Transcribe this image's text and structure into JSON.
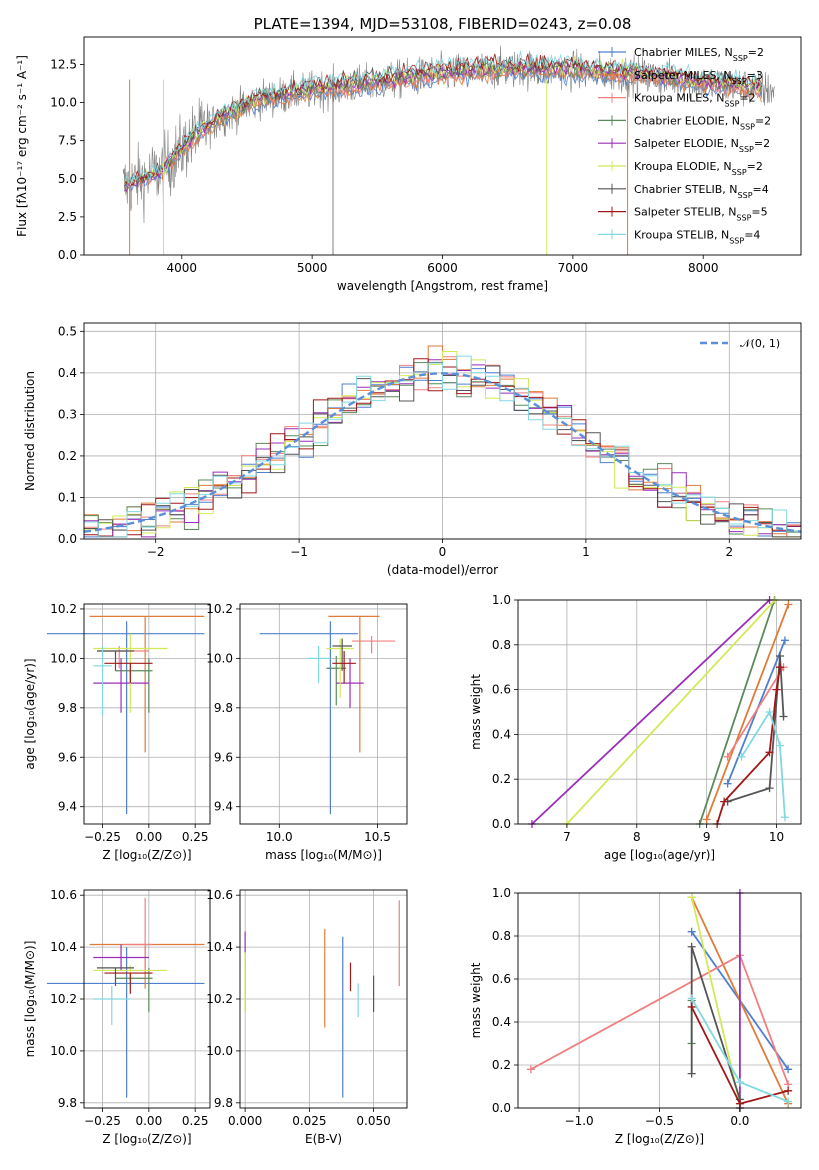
{
  "colors": {
    "miles_chabrier": "#4f7fcf",
    "miles_salpeter": "#e07b39",
    "miles_kroupa": "#f08080",
    "elodie_chabrier": "#5a8a5a",
    "elodie_salpeter": "#9a2fb8",
    "elodie_kroupa": "#d4e85a",
    "stelib_chabrier": "#555555",
    "stelib_salpeter": "#a01818",
    "stelib_kroupa": "#80d8e0",
    "normal": "#5b8fd8",
    "data": "#808080"
  },
  "chart_data": [
    {
      "id": "spectrum",
      "type": "line",
      "title": "PLATE=1394, MJD=53108, FIBERID=0243, z=0.08",
      "xlabel": "wavelength [Angstrom, rest frame]",
      "ylabel": "Flux [fλ10⁻¹⁷ erg cm⁻² s⁻¹ A⁻¹]",
      "xlim": [
        3250,
        8750
      ],
      "ylim": [
        0,
        14.3
      ],
      "xticks": [
        "4000",
        "5000",
        "6000",
        "7000",
        "8000"
      ],
      "yticks": [
        "0.0",
        "2.5",
        "5.0",
        "7.5",
        "10.0",
        "12.5"
      ],
      "grid": false,
      "legend_position": "top-right",
      "legend": [
        {
          "label": "Chabrier MILES, N",
          "sub": "SSP",
          "val": "=2"
        },
        {
          "label": "Salpeter MILES, N",
          "sub": "SSP",
          "val": "=3"
        },
        {
          "label": "Kroupa MILES, N",
          "sub": "SSP",
          "val": "=2"
        },
        {
          "label": "Chabrier ELODIE, N",
          "sub": "SSP",
          "val": "=2"
        },
        {
          "label": "Salpeter ELODIE, N",
          "sub": "SSP",
          "val": "=2"
        },
        {
          "label": "Kroupa ELODIE, N",
          "sub": "SSP",
          "val": "=2"
        },
        {
          "label": "Chabrier STELIB, N",
          "sub": "SSP",
          "val": "=4"
        },
        {
          "label": "Salpeter STELIB, N",
          "sub": "SSP",
          "val": "=5"
        },
        {
          "label": "Kroupa STELIB, N",
          "sub": "SSP",
          "val": "=4"
        }
      ],
      "continuum": {
        "x": [
          3550,
          3700,
          3850,
          3950,
          4100,
          4300,
          4600,
          5000,
          5500,
          6000,
          6500,
          7000,
          7500,
          8000,
          8500
        ],
        "y": [
          4.5,
          5.0,
          5.5,
          6.5,
          7.8,
          9.0,
          10.2,
          10.8,
          11.3,
          11.9,
          12.2,
          12.1,
          11.8,
          11.3,
          10.8
        ]
      }
    },
    {
      "id": "residuals",
      "type": "bar",
      "xlabel": "(data-model)/error",
      "ylabel": "Normed distribution",
      "xlim": [
        -2.5,
        2.5
      ],
      "ylim": [
        0,
        0.52
      ],
      "xticks": [
        "−2",
        "−1",
        "0",
        "1",
        "2"
      ],
      "yticks": [
        "0.0",
        "0.1",
        "0.2",
        "0.3",
        "0.4",
        "0.5"
      ],
      "grid": true,
      "legend_position": "top-right",
      "legend": [
        {
          "label": "𝒩(0, 1)"
        }
      ]
    },
    {
      "id": "age-vs-Z",
      "type": "scatter",
      "xlabel": "Z [log₁₀(Z/Z⊙)]",
      "ylabel": "age  [log₁₀(age/yr)]",
      "xlim": [
        -0.35,
        0.33
      ],
      "ylim": [
        9.33,
        10.22
      ],
      "xticks": [
        "−0.25",
        "0.00",
        "0.25"
      ],
      "yticks": [
        "9.4",
        "9.6",
        "9.8",
        "10.0",
        "10.2"
      ],
      "grid": true,
      "errorbars": [
        {
          "c": "miles_chabrier",
          "x": -0.12,
          "xerr": [
            0.43,
            0.42
          ],
          "y": 10.1,
          "yerr": [
            0.73,
            0.05
          ]
        },
        {
          "c": "miles_salpeter",
          "x": -0.02,
          "xerr": [
            0.3,
            0.32
          ],
          "y": 10.17,
          "yerr": [
            0.55,
            0.0
          ]
        },
        {
          "c": "miles_kroupa",
          "x": -0.16,
          "xerr": [
            0.12,
            0.16
          ],
          "y": 10.03,
          "yerr": [
            0.07,
            0.02
          ]
        },
        {
          "c": "elodie_chabrier",
          "x": 0.0,
          "xerr": [
            0.18,
            0.02
          ],
          "y": 9.95,
          "yerr": [
            0.17,
            0.05
          ]
        },
        {
          "c": "elodie_salpeter",
          "x": -0.15,
          "xerr": [
            0.15,
            0.15
          ],
          "y": 9.9,
          "yerr": [
            0.12,
            0.1
          ]
        },
        {
          "c": "elodie_kroupa",
          "x": -0.1,
          "xerr": [
            0.2,
            0.2
          ],
          "y": 10.04,
          "yerr": [
            0.26,
            0.06
          ]
        },
        {
          "c": "stelib_chabrier",
          "x": -0.18,
          "xerr": [
            0.1,
            0.1
          ],
          "y": 10.03,
          "yerr": [
            0.08,
            0.0
          ]
        },
        {
          "c": "stelib_salpeter",
          "x": -0.1,
          "xerr": [
            0.14,
            0.12
          ],
          "y": 9.98,
          "yerr": [
            0.08,
            0.0
          ]
        },
        {
          "c": "stelib_kroupa",
          "x": -0.25,
          "xerr": [
            0.05,
            0.05
          ],
          "y": 9.97,
          "yerr": [
            0.2,
            0.08
          ]
        }
      ]
    },
    {
      "id": "age-vs-mass",
      "type": "scatter",
      "xlabel": "mass [log₁₀(M/M⊙)]",
      "ylabel": "",
      "xlim": [
        9.8,
        10.65
      ],
      "ylim": [
        9.33,
        10.22
      ],
      "xticks": [
        "10.0",
        "10.5"
      ],
      "yticks": [
        "9.4",
        "9.6",
        "9.8",
        "10.0",
        "10.2"
      ],
      "grid": true,
      "errorbars": [
        {
          "c": "miles_chabrier",
          "x": 10.26,
          "xerr": [
            0.36,
            0.14
          ],
          "y": 10.1,
          "yerr": [
            0.73,
            0.05
          ]
        },
        {
          "c": "miles_salpeter",
          "x": 10.41,
          "xerr": [
            0.16,
            0.1
          ],
          "y": 10.17,
          "yerr": [
            0.55,
            0.0
          ]
        },
        {
          "c": "miles_kroupa",
          "x": 10.47,
          "xerr": [
            0.1,
            0.12
          ],
          "y": 10.07,
          "yerr": [
            0.05,
            0.02
          ]
        },
        {
          "c": "elodie_chabrier",
          "x": 10.29,
          "xerr": [
            0.05,
            0.05
          ],
          "y": 9.96,
          "yerr": [
            0.15,
            0.05
          ]
        },
        {
          "c": "elodie_salpeter",
          "x": 10.36,
          "xerr": [
            0.07,
            0.07
          ],
          "y": 9.9,
          "yerr": [
            0.1,
            0.1
          ]
        },
        {
          "c": "elodie_kroupa",
          "x": 10.31,
          "xerr": [
            0.07,
            0.07
          ],
          "y": 10.04,
          "yerr": [
            0.2,
            0.04
          ]
        },
        {
          "c": "stelib_chabrier",
          "x": 10.32,
          "xerr": [
            0.05,
            0.05
          ],
          "y": 10.05,
          "yerr": [
            0.1,
            0.03
          ]
        },
        {
          "c": "stelib_salpeter",
          "x": 10.33,
          "xerr": [
            0.06,
            0.06
          ],
          "y": 9.98,
          "yerr": [
            0.08,
            0.05
          ]
        },
        {
          "c": "stelib_kroupa",
          "x": 10.2,
          "xerr": [
            0.06,
            0.06
          ],
          "y": 10.0,
          "yerr": [
            0.1,
            0.05
          ]
        }
      ]
    },
    {
      "id": "weight-vs-age",
      "type": "line",
      "xlabel": "age  [log₁₀(age/yr)]",
      "ylabel": "mass weight",
      "xlim": [
        6.3,
        10.35
      ],
      "ylim": [
        0,
        1
      ],
      "xticks": [
        "7",
        "8",
        "9",
        "10"
      ],
      "yticks": [
        "0.0",
        "0.2",
        "0.4",
        "0.6",
        "0.8",
        "1.0"
      ],
      "grid": true,
      "series": [
        {
          "c": "miles_chabrier",
          "x": [
            9.3,
            10.12
          ],
          "y": [
            0.18,
            0.82
          ]
        },
        {
          "c": "miles_salpeter",
          "x": [
            9.0,
            10.17
          ],
          "y": [
            0.02,
            0.98
          ]
        },
        {
          "c": "miles_kroupa",
          "x": [
            9.3,
            10.1
          ],
          "y": [
            0.3,
            0.7
          ]
        },
        {
          "c": "elodie_chabrier",
          "x": [
            8.9,
            9.97
          ],
          "y": [
            0.0,
            1.0
          ]
        },
        {
          "c": "elodie_salpeter",
          "x": [
            6.5,
            9.9
          ],
          "y": [
            0.0,
            1.0
          ]
        },
        {
          "c": "elodie_kroupa",
          "x": [
            7.0,
            9.98
          ],
          "y": [
            0.0,
            1.0
          ]
        },
        {
          "c": "stelib_chabrier",
          "x": [
            9.3,
            9.9,
            10.05,
            10.1
          ],
          "y": [
            0.1,
            0.16,
            0.75,
            0.48
          ]
        },
        {
          "c": "stelib_salpeter",
          "x": [
            9.15,
            9.25,
            9.9,
            10.0,
            10.05
          ],
          "y": [
            0.0,
            0.1,
            0.32,
            0.6,
            0.7
          ]
        },
        {
          "c": "stelib_kroupa",
          "x": [
            9.5,
            9.9,
            10.05,
            10.12
          ],
          "y": [
            0.3,
            0.5,
            0.35,
            0.03
          ]
        }
      ]
    },
    {
      "id": "mass-vs-Z",
      "type": "scatter",
      "xlabel": "Z [log₁₀(Z/Z⊙)]",
      "ylabel": "mass [log₁₀(M/M⊙)]",
      "xlim": [
        -0.35,
        0.33
      ],
      "ylim": [
        9.78,
        10.62
      ],
      "xticks": [
        "−0.25",
        "0.00",
        "0.25"
      ],
      "yticks": [
        "9.8",
        "10.0",
        "10.2",
        "10.4",
        "10.6"
      ],
      "grid": true,
      "errorbars": [
        {
          "c": "miles_chabrier",
          "x": -0.12,
          "xerr": [
            0.43,
            0.42
          ],
          "y": 10.26,
          "yerr": [
            0.44,
            0.14
          ]
        },
        {
          "c": "miles_salpeter",
          "x": -0.02,
          "xerr": [
            0.3,
            0.32
          ],
          "y": 10.41,
          "yerr": [
            0.17,
            0.0
          ]
        },
        {
          "c": "miles_kroupa",
          "x": -0.02,
          "xerr": [
            0.12,
            0.04
          ],
          "y": 10.41,
          "yerr": [
            0.1,
            0.18
          ]
        },
        {
          "c": "elodie_chabrier",
          "x": 0.0,
          "xerr": [
            0.18,
            0.02
          ],
          "y": 10.28,
          "yerr": [
            0.13,
            0.04
          ]
        },
        {
          "c": "elodie_salpeter",
          "x": -0.15,
          "xerr": [
            0.15,
            0.15
          ],
          "y": 10.36,
          "yerr": [
            0.05,
            0.05
          ]
        },
        {
          "c": "elodie_kroupa",
          "x": -0.1,
          "xerr": [
            0.2,
            0.2
          ],
          "y": 10.31,
          "yerr": [
            0.07,
            0.02
          ]
        },
        {
          "c": "stelib_chabrier",
          "x": -0.18,
          "xerr": [
            0.1,
            0.1
          ],
          "y": 10.32,
          "yerr": [
            0.07,
            0.0
          ]
        },
        {
          "c": "stelib_salpeter",
          "x": -0.1,
          "xerr": [
            0.14,
            0.12
          ],
          "y": 10.3,
          "yerr": [
            0.08,
            0.0
          ]
        },
        {
          "c": "stelib_kroupa",
          "x": -0.2,
          "xerr": [
            0.1,
            0.1
          ],
          "y": 10.2,
          "yerr": [
            0.1,
            0.05
          ]
        }
      ]
    },
    {
      "id": "mass-vs-EBV",
      "type": "scatter",
      "xlabel": "E(B-V)",
      "ylabel": "",
      "xlim": [
        -0.002,
        0.063
      ],
      "ylim": [
        9.78,
        10.62
      ],
      "xticks": [
        "0.000",
        "0.025",
        "0.050"
      ],
      "yticks": [
        "9.8",
        "10.0",
        "10.2",
        "10.4",
        "10.6"
      ],
      "grid": true,
      "errorbars": [
        {
          "c": "miles_chabrier",
          "x": 0.038,
          "xerr": [
            0,
            0
          ],
          "y": 10.26,
          "yerr": [
            0.44,
            0.18
          ]
        },
        {
          "c": "miles_salpeter",
          "x": 0.031,
          "xerr": [
            0,
            0
          ],
          "y": 10.28,
          "yerr": [
            0.19,
            0.19
          ]
        },
        {
          "c": "miles_kroupa",
          "x": 0.06,
          "xerr": [
            0,
            0
          ],
          "y": 10.42,
          "yerr": [
            0.17,
            0.16
          ]
        },
        {
          "c": "elodie_chabrier",
          "x": 0.0,
          "xerr": [
            0,
            0
          ],
          "y": 10.28,
          "yerr": [
            0.13,
            0.04
          ]
        },
        {
          "c": "elodie_salpeter",
          "x": 0.0,
          "xerr": [
            0,
            0
          ],
          "y": 10.36,
          "yerr": [
            0.04,
            0.1
          ]
        },
        {
          "c": "elodie_kroupa",
          "x": 0.0,
          "xerr": [
            0,
            0
          ],
          "y": 10.28,
          "yerr": [
            0.13,
            0.1
          ]
        },
        {
          "c": "stelib_chabrier",
          "x": 0.05,
          "xerr": [
            0,
            0
          ],
          "y": 10.22,
          "yerr": [
            0.07,
            0.07
          ]
        },
        {
          "c": "stelib_salpeter",
          "x": 0.041,
          "xerr": [
            0,
            0
          ],
          "y": 10.29,
          "yerr": [
            0.06,
            0.05
          ]
        },
        {
          "c": "stelib_kroupa",
          "x": 0.044,
          "xerr": [
            0,
            0
          ],
          "y": 10.2,
          "yerr": [
            0.07,
            0.06
          ]
        }
      ]
    },
    {
      "id": "weight-vs-Z",
      "type": "line",
      "xlabel": "Z [log₁₀(Z/Z⊙)]",
      "ylabel": "mass weight",
      "xlim": [
        -1.38,
        0.38
      ],
      "ylim": [
        0,
        1
      ],
      "xticks": [
        "−1.0",
        "−0.5",
        "0.0"
      ],
      "yticks": [
        "0.0",
        "0.2",
        "0.4",
        "0.6",
        "0.8",
        "1.0"
      ],
      "grid": true,
      "series": [
        {
          "c": "miles_chabrier",
          "x": [
            -0.3,
            0.3
          ],
          "y": [
            0.82,
            0.18
          ]
        },
        {
          "c": "miles_salpeter",
          "x": [
            -0.3,
            0.3
          ],
          "y": [
            0.98,
            0.02
          ]
        },
        {
          "c": "miles_kroupa",
          "x": [
            -1.3,
            0.0,
            0.3
          ],
          "y": [
            0.18,
            0.71,
            0.11
          ]
        },
        {
          "c": "elodie_chabrier",
          "x": [
            -0.3,
            -0.3
          ],
          "y": [
            0.3,
            0.5
          ]
        },
        {
          "c": "elodie_salpeter",
          "x": [
            0.0,
            0.0
          ],
          "y": [
            0.0,
            1.0
          ]
        },
        {
          "c": "elodie_kroupa",
          "x": [
            -0.3,
            0.0
          ],
          "y": [
            0.98,
            0.02
          ]
        },
        {
          "c": "stelib_chabrier",
          "x": [
            -0.3,
            -0.3,
            0.0,
            0.0
          ],
          "y": [
            0.16,
            0.75,
            0.04,
            0.0
          ]
        },
        {
          "c": "stelib_salpeter",
          "x": [
            -0.3,
            0.0,
            0.3
          ],
          "y": [
            0.47,
            0.02,
            0.08
          ]
        },
        {
          "c": "stelib_kroupa",
          "x": [
            -0.3,
            0.0,
            0.3
          ],
          "y": [
            0.51,
            0.12,
            0.03
          ]
        }
      ]
    }
  ]
}
